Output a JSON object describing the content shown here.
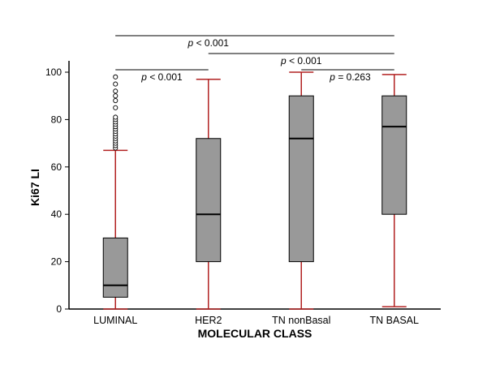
{
  "chart_data": {
    "type": "boxplot",
    "xlabel": "MOLECULAR CLASS",
    "ylabel": "Ki67 LI",
    "ylim": [
      0,
      100
    ],
    "yticks": [
      0,
      20,
      40,
      60,
      80,
      100
    ],
    "grid": false,
    "categories": [
      "LUMINAL",
      "HER2",
      "TN nonBasal",
      "TN BASAL"
    ],
    "boxes": [
      {
        "category": "LUMINAL",
        "min": 0,
        "q1": 5,
        "median": 10,
        "q3": 30,
        "max": 67,
        "outliers": [
          68,
          69,
          70,
          71,
          72,
          73,
          74,
          75,
          76,
          77,
          78,
          79,
          80,
          81,
          85,
          88,
          90,
          92,
          95,
          98
        ]
      },
      {
        "category": "HER2",
        "min": 0,
        "q1": 20,
        "median": 40,
        "q3": 72,
        "max": 97,
        "outliers": []
      },
      {
        "category": "TN nonBasal",
        "min": 0,
        "q1": 20,
        "median": 72,
        "q3": 90,
        "max": 100,
        "outliers": []
      },
      {
        "category": "TN BASAL",
        "min": 1,
        "q1": 40,
        "median": 77,
        "q3": 90,
        "max": 99,
        "outliers": []
      }
    ],
    "comparisons": [
      {
        "from": "LUMINAL",
        "to": "HER2",
        "p_symbol": "p",
        "text": " < 0.001"
      },
      {
        "from": "HER2",
        "to": "TN BASAL",
        "p_symbol": "p",
        "text": " < 0.001"
      },
      {
        "from": "LUMINAL",
        "to": "TN nonBasal",
        "p_symbol": "p",
        "text": " < 0.001"
      },
      {
        "from": "TN nonBasal",
        "to": "TN BASAL",
        "p_symbol": "p",
        "text": " = 0.263"
      }
    ],
    "colors": {
      "box_fill": "#999999",
      "whisker": "#b22222",
      "median": "#000000"
    }
  }
}
